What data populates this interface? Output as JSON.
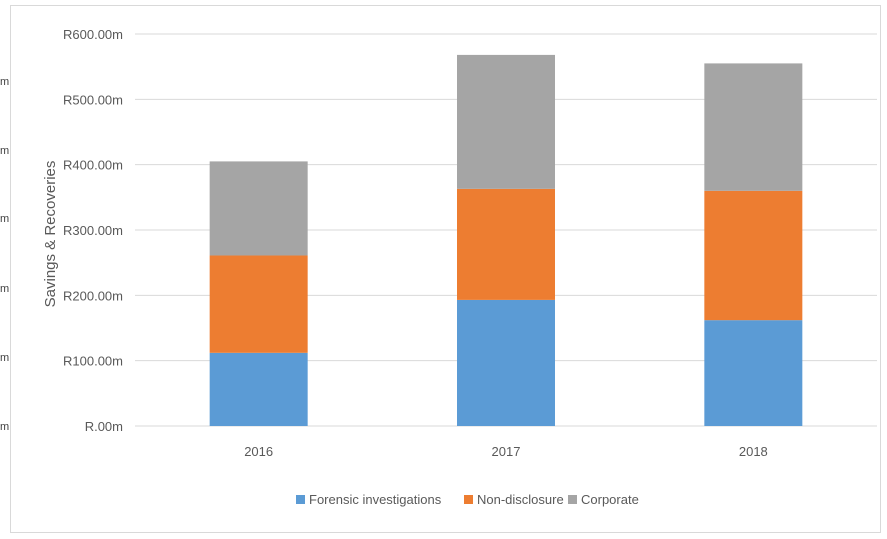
{
  "edge_fragments": [
    "m",
    "m",
    "m",
    "m",
    "m",
    "m"
  ],
  "chart_data": {
    "type": "bar",
    "stacked": true,
    "categories": [
      "2016",
      "2017",
      "2018"
    ],
    "series": [
      {
        "name": "Forensic investigations",
        "color": "#5b9bd5",
        "values": [
          112,
          193,
          162
        ]
      },
      {
        "name": "Non-disclosure",
        "color": "#ed7d31",
        "values": [
          149,
          170,
          198
        ]
      },
      {
        "name": "Corporate",
        "color": "#a5a5a5",
        "values": [
          144,
          205,
          195
        ]
      }
    ],
    "ylabel": "Savings & Recoveries",
    "ylim": [
      0,
      600
    ],
    "yticks": [
      0,
      100,
      200,
      300,
      400,
      500,
      600
    ],
    "ytick_labels": [
      "R.00m",
      "R100.00m",
      "R200.00m",
      "R300.00m",
      "R400.00m",
      "R500.00m",
      "R600.00m"
    ],
    "grid": true,
    "legend_position": "bottom",
    "gridline_color": "#d9d9d9",
    "text_color": "#595959"
  }
}
